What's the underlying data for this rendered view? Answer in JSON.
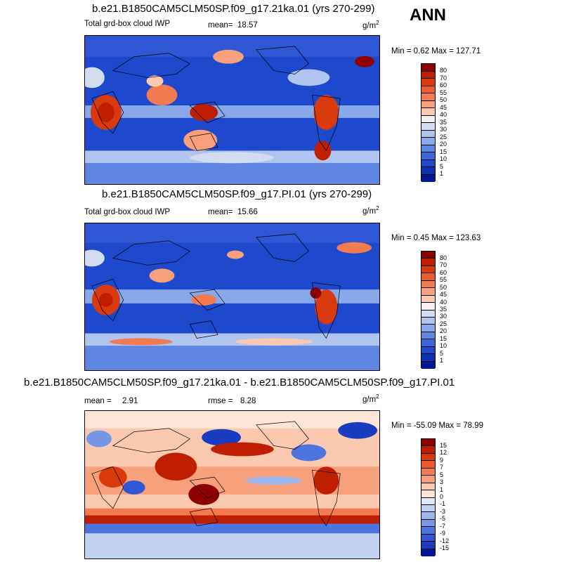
{
  "season": "ANN",
  "unit_base": "g/m",
  "unit_exp": "2",
  "panels": [
    {
      "title": "b.e21.B1850CAM5CLM50SP.f09_g17.21ka.01 (yrs 270-299)",
      "variable": "Total grd-box cloud IWP",
      "mean_label": "mean=",
      "mean": "18.57",
      "minmax": "Min =  0.62 Max = 127.71"
    },
    {
      "title": "b.e21.B1850CAM5CLM50SP.f09_g17.PI.01 (yrs 270-299)",
      "variable": "Total grd-box cloud IWP",
      "mean_label": "mean=",
      "mean": "15.66",
      "minmax": "Min =  0.45 Max = 123.63"
    },
    {
      "title": "b.e21.B1850CAM5CLM50SP.f09_g17.21ka.01 - b.e21.B1850CAM5CLM50SP.f09_g17.PI.01",
      "mean_label": "mean =",
      "mean": "2.91",
      "rmse_label": "rmse =",
      "rmse": "8.28",
      "minmax": "Min = -55.09 Max = 78.99"
    }
  ],
  "colorbar_abs": {
    "levels": [
      "80",
      "70",
      "60",
      "55",
      "50",
      "45",
      "40",
      "35",
      "30",
      "25",
      "20",
      "15",
      "10",
      "5",
      "1"
    ],
    "colors": [
      "#8c0000",
      "#c01e00",
      "#d93a0d",
      "#ec5a2e",
      "#f47a50",
      "#f8a07c",
      "#fbc9b0",
      "#f5efee",
      "#d3ddf2",
      "#afc4ee",
      "#88a8ea",
      "#5f86e3",
      "#3a66dc",
      "#1f49cc",
      "#0f2fb3",
      "#041696"
    ]
  },
  "colorbar_diff": {
    "levels": [
      "15",
      "12",
      "9",
      "7",
      "5",
      "3",
      "1",
      "0",
      "-1",
      "-3",
      "-5",
      "-7",
      "-9",
      "-12",
      "-15"
    ],
    "colors": [
      "#8c0000",
      "#c01e00",
      "#d93a0d",
      "#ec5a2e",
      "#f47a50",
      "#f8a07c",
      "#fbc9b0",
      "#fde4d8",
      "#e1e8f6",
      "#c2d2f1",
      "#9db6ec",
      "#7696e6",
      "#4e74df",
      "#2f56d4",
      "#1a3cc0",
      "#041696"
    ]
  }
}
